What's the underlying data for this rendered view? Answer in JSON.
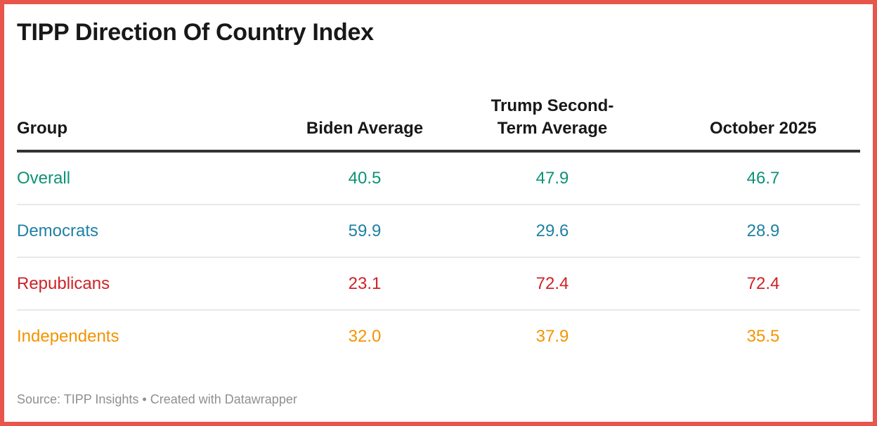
{
  "title": "TIPP Direction Of Country Index",
  "colors": {
    "frame_border": "#e8554b",
    "header_text": "#181818",
    "header_rule": "#333333",
    "row_divider": "#e8e8e8",
    "overall": "#0e9276",
    "democrats": "#1f81a4",
    "republicans": "#ce2327",
    "independents": "#f59300",
    "footer_text": "#8f8f8f"
  },
  "table": {
    "headers": [
      "Group",
      "Biden Average",
      "Trump Second-Term Average",
      "October 2025"
    ],
    "rows": [
      {
        "group": "Overall",
        "values": [
          "40.5",
          "47.9",
          "46.7"
        ]
      },
      {
        "group": "Democrats",
        "values": [
          "59.9",
          "29.6",
          "28.9"
        ]
      },
      {
        "group": "Republicans",
        "values": [
          "23.1",
          "72.4",
          "72.4"
        ]
      },
      {
        "group": "Independents",
        "values": [
          "32.0",
          "37.9",
          "35.5"
        ]
      }
    ]
  },
  "footer": {
    "source_note": "Source: TIPP Insights • Created with Datawrapper"
  },
  "chart_data": {
    "type": "table",
    "title": "TIPP Direction Of Country Index",
    "columns": [
      "Group",
      "Biden Average",
      "Trump Second-Term Average",
      "October 2025"
    ],
    "rows": [
      {
        "group": "Overall",
        "biden_average": 40.5,
        "trump_second_term_average": 47.9,
        "october_2025": 46.7,
        "color": "#0e9276"
      },
      {
        "group": "Democrats",
        "biden_average": 59.9,
        "trump_second_term_average": 29.6,
        "october_2025": 28.9,
        "color": "#1f81a4"
      },
      {
        "group": "Republicans",
        "biden_average": 23.1,
        "trump_second_term_average": 72.4,
        "october_2025": 72.4,
        "color": "#ce2327"
      },
      {
        "group": "Independents",
        "biden_average": 32.0,
        "trump_second_term_average": 37.9,
        "october_2025": 35.5,
        "color": "#f59300"
      }
    ],
    "source": "TIPP Insights",
    "created_with": "Datawrapper",
    "layout": {
      "group_column_align": "left",
      "numeric_columns_align": "center",
      "grid": "horizontal-row-dividers"
    }
  }
}
